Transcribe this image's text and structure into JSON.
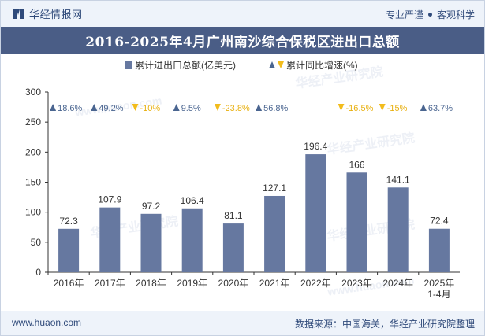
{
  "header": {
    "brand_name": "华经情报网",
    "slogan_left": "专业严谨",
    "slogan_right": "客观科学"
  },
  "chart_data": {
    "type": "bar",
    "title": "2016-2025年4月广州南沙综合保税区进出口总额",
    "categories": [
      "2016年",
      "2017年",
      "2018年",
      "2019年",
      "2020年",
      "2021年",
      "2022年",
      "2023年",
      "2024年",
      "2025年\n1-4月"
    ],
    "series": [
      {
        "name": "累计进出口总额(亿美元)",
        "values": [
          72.3,
          107.9,
          97.2,
          106.4,
          81.1,
          127.1,
          196.4,
          166,
          141.1,
          72.4
        ],
        "value_labels": [
          "72.3",
          "107.9",
          "97.2",
          "106.4",
          "81.1",
          "127.1",
          "196.4",
          "166",
          "141.1",
          "72.4"
        ],
        "color": "#6678a0"
      },
      {
        "name": "累计同比增速(%)",
        "values": [
          18.6,
          49.2,
          -10,
          9.5,
          -23.8,
          56.8,
          null,
          -16.5,
          -15,
          63.7
        ],
        "value_labels": [
          "18.6%",
          "49.2%",
          "-10%",
          "9.5%",
          "-23.8%",
          "56.8%",
          "",
          "-16.5%",
          "-15%",
          "63.7%"
        ]
      }
    ],
    "ylim": [
      0,
      300
    ],
    "yticks": [
      0,
      50,
      100,
      150,
      200,
      250,
      300
    ],
    "ytick_labels": [
      "0",
      "50",
      "100",
      "150",
      "200",
      "250",
      "300"
    ],
    "grid": false,
    "legend": "top-center",
    "colors": {
      "bar": "#6678a0",
      "up": "#4a6590",
      "down": "#f2bc1c",
      "up_text": "#4a6590",
      "down_text": "#e8b010",
      "axis": "#333333"
    }
  },
  "watermarks": [
    "华经产业研究院",
    "www.huaon.com"
  ],
  "footer": {
    "url": "www.huaon.com",
    "source": "数据来源：中国海关，华经产业研究院整理"
  }
}
